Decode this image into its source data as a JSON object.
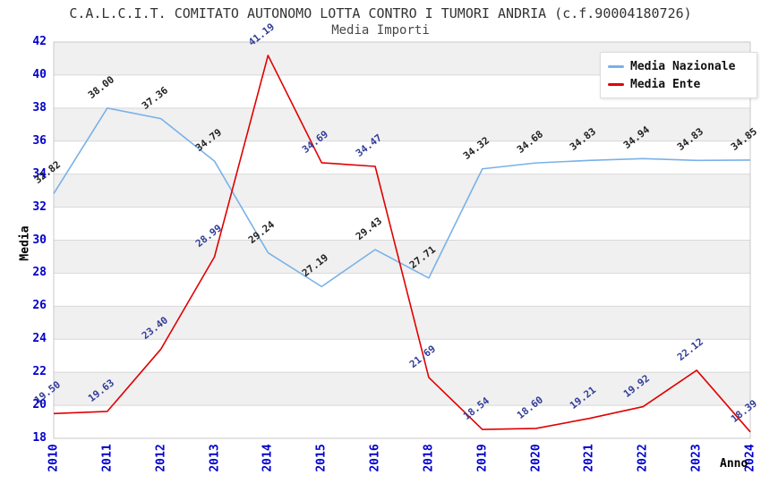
{
  "chart_data": {
    "type": "line",
    "title": "C.A.L.C.I.T. COMITATO AUTONOMO LOTTA CONTRO I TUMORI ANDRIA (c.f.90004180726)",
    "subtitle": "Media Importi",
    "xlabel": "Anno",
    "ylabel": "Media",
    "ylim": [
      18,
      42
    ],
    "ytick_step": 2,
    "grid": true,
    "legend_position": "top-right",
    "categories": [
      "2010",
      "2011",
      "2012",
      "2013",
      "2014",
      "2015",
      "2016",
      "2018",
      "2019",
      "2020",
      "2021",
      "2022",
      "2023",
      "2024"
    ],
    "series": [
      {
        "name": "Media Nazionale",
        "color": "#7ab1e8",
        "label_color": "#222222",
        "values": [
          32.82,
          38.0,
          37.36,
          34.79,
          29.24,
          27.19,
          29.43,
          27.71,
          34.32,
          34.68,
          34.83,
          34.94,
          34.83,
          34.85
        ]
      },
      {
        "name": "Media Ente",
        "color": "#e00000",
        "label_color": "#333d99",
        "values": [
          19.5,
          19.63,
          23.4,
          28.99,
          41.19,
          34.69,
          34.47,
          21.69,
          18.54,
          18.6,
          19.21,
          19.92,
          22.12,
          18.39
        ]
      }
    ],
    "tick_color": "#0000cc",
    "grid_color": "#d8d8d8",
    "band_color": "#f0f0f0",
    "border_color": "#c8c8c8",
    "title_color": "#333333"
  }
}
